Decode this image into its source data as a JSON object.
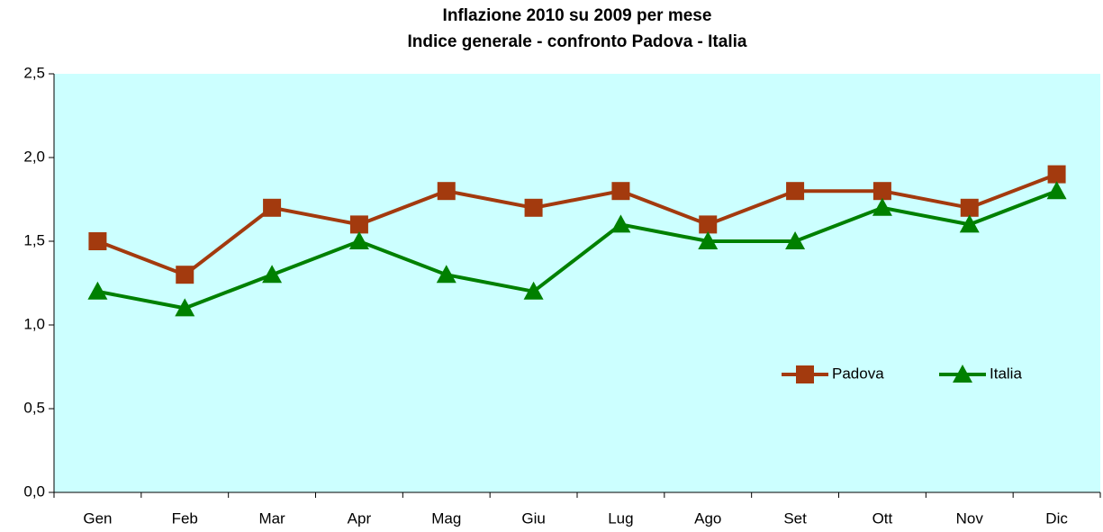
{
  "chart_data": {
    "type": "line",
    "title": "Inflazione 2010 su 2009 per mese",
    "subtitle": "Indice generale - confronto Padova - Italia",
    "categories": [
      "Gen",
      "Feb",
      "Mar",
      "Apr",
      "Mag",
      "Giu",
      "Lug",
      "Ago",
      "Set",
      "Ott",
      "Nov",
      "Dic"
    ],
    "series": [
      {
        "name": "Padova",
        "color": "#a33a0e",
        "marker": "square",
        "values": [
          1.5,
          1.3,
          1.7,
          1.6,
          1.8,
          1.7,
          1.8,
          1.6,
          1.8,
          1.8,
          1.7,
          1.9
        ]
      },
      {
        "name": "Italia",
        "color": "#008000",
        "marker": "triangle",
        "values": [
          1.2,
          1.1,
          1.3,
          1.5,
          1.3,
          1.2,
          1.6,
          1.5,
          1.5,
          1.7,
          1.6,
          1.8
        ]
      }
    ],
    "ylim": [
      0,
      2.5
    ],
    "yticks": [
      {
        "value": 0,
        "label": "0,0"
      },
      {
        "value": 0.5,
        "label": "0,5"
      },
      {
        "value": 1,
        "label": "1,0"
      },
      {
        "value": 1.5,
        "label": "1,5"
      },
      {
        "value": 2,
        "label": "2,0"
      },
      {
        "value": 2.5,
        "label": "2,5"
      }
    ],
    "grid": false,
    "legend": "center right",
    "background": "#ccffff"
  }
}
